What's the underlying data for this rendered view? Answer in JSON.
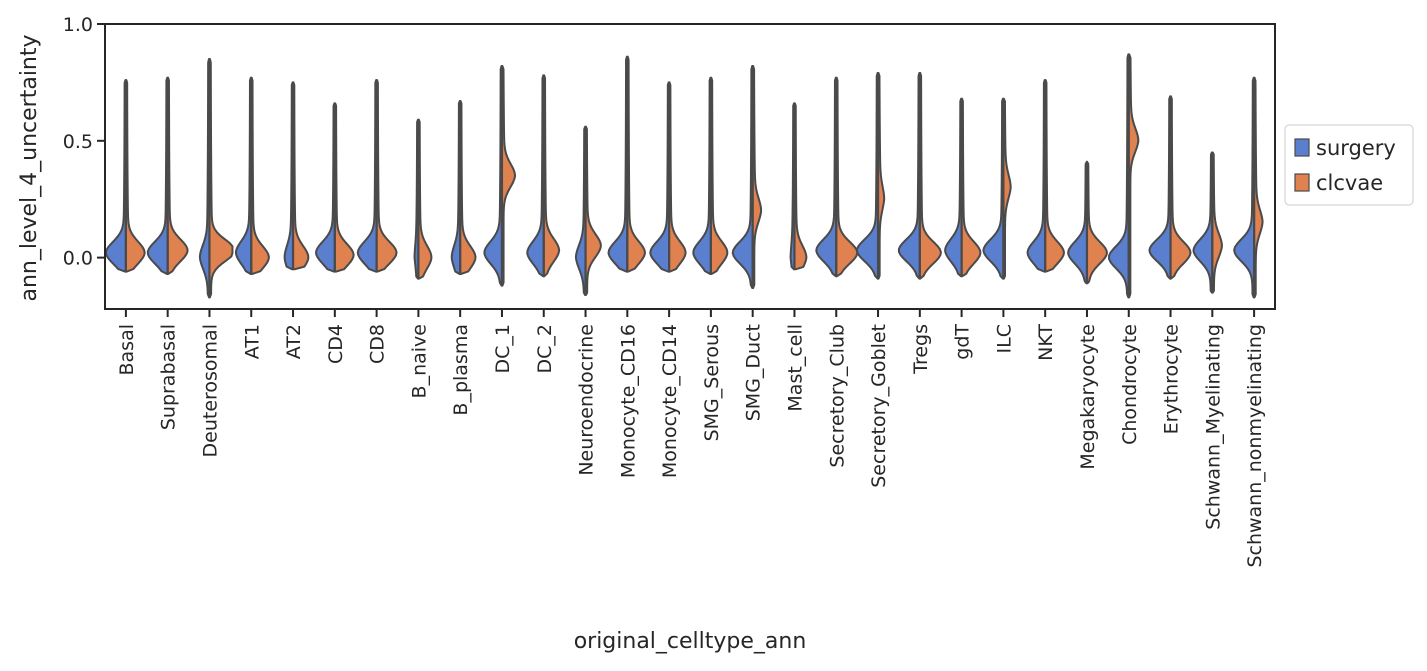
{
  "chart_data": {
    "type": "violin",
    "title": "",
    "xlabel": "original_celltype_ann",
    "ylabel": "ann_level_4_uncertainty",
    "ylim": [
      -0.22,
      1.0
    ],
    "yticks": [
      {
        "value": 0.0,
        "label": "0.0"
      },
      {
        "value": 0.5,
        "label": "0.5"
      },
      {
        "value": 1.0,
        "label": "1.0"
      }
    ],
    "grid": false,
    "legend_position": "right",
    "colors": {
      "surgery": "#5a7fcf",
      "clcvae": "#df8250",
      "outline": "#4a4a4a",
      "axis": "#262626"
    },
    "series": [
      {
        "name": "surgery"
      },
      {
        "name": "clcvae"
      }
    ],
    "categories": [
      {
        "label": "Basal",
        "min": -0.06,
        "max": 0.76,
        "surgery": {
          "peak": 0.02,
          "width": 0.75
        },
        "clcvae": {
          "peak": 0.02,
          "width": 0.7
        }
      },
      {
        "label": "Suprabasal",
        "min": -0.07,
        "max": 0.77,
        "surgery": {
          "peak": 0.02,
          "width": 0.75
        },
        "clcvae": {
          "peak": 0.03,
          "width": 0.75
        }
      },
      {
        "label": "Deuterosomal",
        "min": -0.17,
        "max": 0.85,
        "surgery": {
          "peak": 0.0,
          "width": 0.3
        },
        "clcvae": {
          "peak": 0.03,
          "width": 1.0
        }
      },
      {
        "label": "AT1",
        "min": -0.07,
        "max": 0.77,
        "surgery": {
          "peak": 0.02,
          "width": 0.55
        },
        "clcvae": {
          "peak": 0.0,
          "width": 0.65
        }
      },
      {
        "label": "AT2",
        "min": -0.05,
        "max": 0.75,
        "surgery": {
          "peak": 0.0,
          "width": 0.25
        },
        "clcvae": {
          "peak": 0.0,
          "width": 0.55
        }
      },
      {
        "label": "CD4",
        "min": -0.06,
        "max": 0.66,
        "surgery": {
          "peak": 0.02,
          "width": 0.7
        },
        "clcvae": {
          "peak": 0.01,
          "width": 0.7
        }
      },
      {
        "label": "CD8",
        "min": -0.06,
        "max": 0.76,
        "surgery": {
          "peak": 0.02,
          "width": 0.7
        },
        "clcvae": {
          "peak": 0.02,
          "width": 0.75
        }
      },
      {
        "label": "B_naive",
        "min": -0.09,
        "max": 0.59,
        "surgery": {
          "peak": 0.0,
          "width": 0.05
        },
        "clcvae": {
          "peak": 0.0,
          "width": 0.45
        }
      },
      {
        "label": "B_plasma",
        "min": -0.07,
        "max": 0.67,
        "surgery": {
          "peak": 0.0,
          "width": 0.25
        },
        "clcvae": {
          "peak": 0.0,
          "width": 0.55
        }
      },
      {
        "label": "DC_1",
        "min": -0.12,
        "max": 0.82,
        "surgery": {
          "peak": 0.02,
          "width": 0.65
        },
        "clcvae": {
          "peak": 0.35,
          "width": 0.45
        }
      },
      {
        "label": "DC_2",
        "min": -0.08,
        "max": 0.78,
        "surgery": {
          "peak": 0.02,
          "width": 0.6
        },
        "clcvae": {
          "peak": 0.03,
          "width": 0.55
        }
      },
      {
        "label": "Neuroendocrine",
        "min": -0.16,
        "max": 0.56,
        "surgery": {
          "peak": 0.0,
          "width": 0.3
        },
        "clcvae": {
          "peak": 0.05,
          "width": 0.55
        }
      },
      {
        "label": "Monocyte_CD16",
        "min": -0.06,
        "max": 0.86,
        "surgery": {
          "peak": 0.02,
          "width": 0.7
        },
        "clcvae": {
          "peak": 0.02,
          "width": 0.65
        }
      },
      {
        "label": "Monocyte_CD14",
        "min": -0.06,
        "max": 0.75,
        "surgery": {
          "peak": 0.02,
          "width": 0.7
        },
        "clcvae": {
          "peak": 0.02,
          "width": 0.6
        }
      },
      {
        "label": "SMG_Serous",
        "min": -0.07,
        "max": 0.77,
        "surgery": {
          "peak": 0.02,
          "width": 0.65
        },
        "clcvae": {
          "peak": 0.02,
          "width": 0.6
        }
      },
      {
        "label": "SMG_Duct",
        "min": -0.13,
        "max": 0.82,
        "surgery": {
          "peak": 0.02,
          "width": 0.75
        },
        "clcvae": {
          "peak": 0.2,
          "width": 0.25
        }
      },
      {
        "label": "Mast_cell",
        "min": -0.05,
        "max": 0.66,
        "surgery": {
          "peak": 0.0,
          "width": 0.05
        },
        "clcvae": {
          "peak": 0.0,
          "width": 0.4
        }
      },
      {
        "label": "Secretory_Club",
        "min": -0.08,
        "max": 0.77,
        "surgery": {
          "peak": 0.03,
          "width": 0.75
        },
        "clcvae": {
          "peak": 0.02,
          "width": 0.8
        }
      },
      {
        "label": "Secretory_Goblet",
        "min": -0.09,
        "max": 0.79,
        "surgery": {
          "peak": 0.03,
          "width": 0.8
        },
        "clcvae": {
          "peak": 0.25,
          "width": 0.15
        }
      },
      {
        "label": "Tregs",
        "min": -0.09,
        "max": 0.79,
        "surgery": {
          "peak": 0.03,
          "width": 0.8
        },
        "clcvae": {
          "peak": 0.02,
          "width": 0.8
        }
      },
      {
        "label": "gdT",
        "min": -0.08,
        "max": 0.68,
        "surgery": {
          "peak": 0.03,
          "width": 0.6
        },
        "clcvae": {
          "peak": 0.02,
          "width": 0.7
        }
      },
      {
        "label": "ILC",
        "min": -0.09,
        "max": 0.68,
        "surgery": {
          "peak": 0.03,
          "width": 0.75
        },
        "clcvae": {
          "peak": 0.3,
          "width": 0.2
        }
      },
      {
        "label": "NKT",
        "min": -0.06,
        "max": 0.76,
        "surgery": {
          "peak": 0.02,
          "width": 0.65
        },
        "clcvae": {
          "peak": 0.02,
          "width": 0.7
        }
      },
      {
        "label": "Megakaryocyte",
        "min": -0.11,
        "max": 0.41,
        "surgery": {
          "peak": 0.02,
          "width": 0.7
        },
        "clcvae": {
          "peak": 0.02,
          "width": 0.75
        }
      },
      {
        "label": "Chondrocyte",
        "min": -0.17,
        "max": 0.87,
        "surgery": {
          "peak": 0.0,
          "width": 0.75
        },
        "clcvae": {
          "peak": 0.5,
          "width": 0.3
        }
      },
      {
        "label": "Erythrocyte",
        "min": -0.09,
        "max": 0.69,
        "surgery": {
          "peak": 0.03,
          "width": 0.8
        },
        "clcvae": {
          "peak": 0.02,
          "width": 0.75
        }
      },
      {
        "label": "Schwann_Myelinating",
        "min": -0.15,
        "max": 0.45,
        "surgery": {
          "peak": 0.03,
          "width": 0.7
        },
        "clcvae": {
          "peak": 0.05,
          "width": 0.3
        }
      },
      {
        "label": "Schwann_nonmyelinating",
        "min": -0.17,
        "max": 0.77,
        "surgery": {
          "peak": 0.03,
          "width": 0.75
        },
        "clcvae": {
          "peak": 0.15,
          "width": 0.25
        }
      }
    ]
  }
}
